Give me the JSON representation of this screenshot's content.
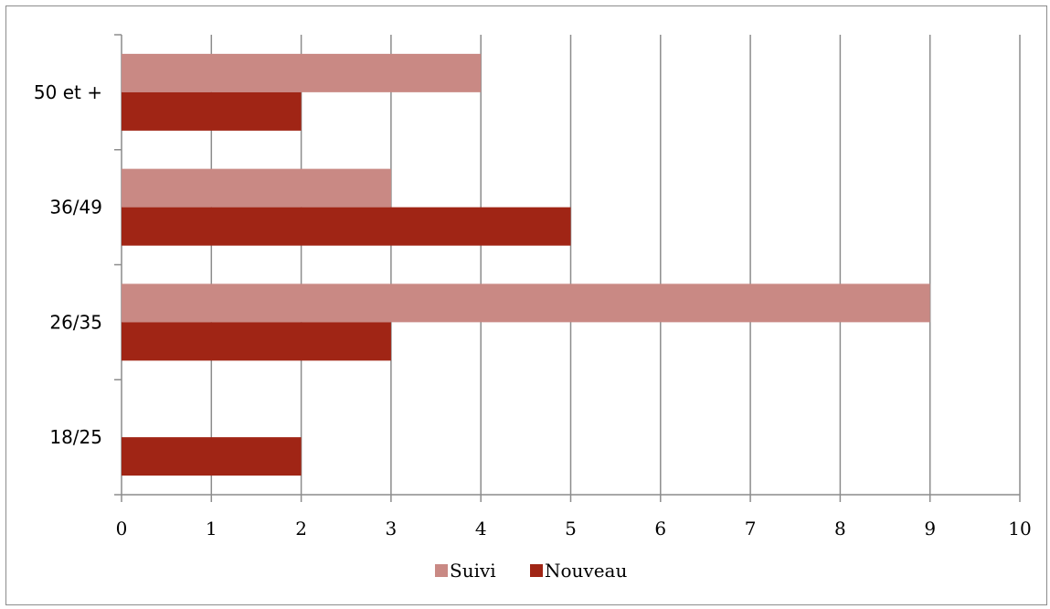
{
  "chart_data": {
    "type": "bar",
    "orientation": "horizontal",
    "categories": [
      "18/25",
      "26/35",
      "36/49",
      "50 et +"
    ],
    "series": [
      {
        "name": "Suivi",
        "values": [
          0,
          9,
          3,
          4
        ],
        "color": "#c98984"
      },
      {
        "name": "Nouveau",
        "values": [
          2,
          3,
          5,
          2
        ],
        "color": "#a02515"
      }
    ],
    "xlim": [
      0,
      10
    ],
    "xticks": [
      "0",
      "1",
      "2",
      "3",
      "4",
      "5",
      "6",
      "7",
      "8",
      "9",
      "10"
    ],
    "grid": "vertical",
    "legend_position": "bottom"
  }
}
